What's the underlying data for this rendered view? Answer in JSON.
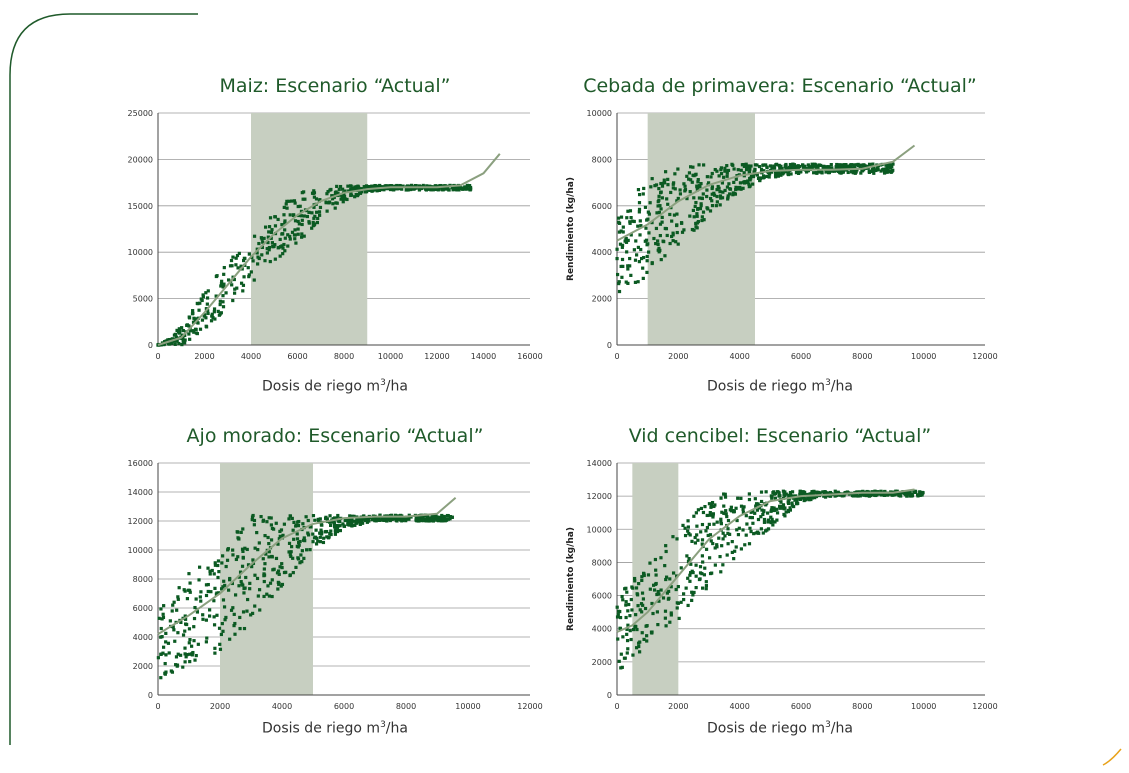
{
  "colors": {
    "frame": "#1f5a2a",
    "title": "#1f5a2a",
    "points": "#0b5a22",
    "curve": "#8ba07f",
    "band": "#c7cfc1",
    "grid": "#9a9a9a",
    "axis": "#444444",
    "corner": "#e8a21a"
  },
  "x_label": "Dosis de riego m",
  "x_label_sup": "3",
  "x_label_unit": "/ha",
  "chart_data": [
    {
      "type": "scatter",
      "title": "Maiz: Escenario “Actual”",
      "xlabel": "Dosis de riego m³/ha",
      "ylabel": "",
      "xlim": [
        0,
        16000
      ],
      "ylim": [
        0,
        25000
      ],
      "x_ticks": [
        "0",
        "2000",
        "4000",
        "6000",
        "8000",
        "10000",
        "12000",
        "14000",
        "16000"
      ],
      "y_ticks": [
        "0",
        "5000",
        "10000",
        "15000",
        "20000",
        "25000"
      ],
      "band": [
        4000,
        9000
      ],
      "curve": [
        [
          0,
          0
        ],
        [
          1000,
          800
        ],
        [
          2000,
          3500
        ],
        [
          3000,
          6500
        ],
        [
          4000,
          9500
        ],
        [
          5000,
          12000
        ],
        [
          6000,
          14000
        ],
        [
          7000,
          15500
        ],
        [
          8000,
          16400
        ],
        [
          9000,
          16800
        ],
        [
          10000,
          17000
        ],
        [
          11000,
          17000
        ],
        [
          12000,
          17000
        ],
        [
          13000,
          17200
        ],
        [
          14000,
          18500
        ],
        [
          14700,
          20600
        ]
      ],
      "cloud": {
        "x_min": 0,
        "x_max": 13500,
        "lower": [
          [
            0,
            0
          ],
          [
            1000,
            0
          ],
          [
            2000,
            1500
          ],
          [
            3000,
            4000
          ],
          [
            4000,
            6500
          ],
          [
            5000,
            9000
          ],
          [
            6000,
            11000
          ],
          [
            7000,
            13500
          ],
          [
            8000,
            15500
          ],
          [
            9000,
            16500
          ],
          [
            10000,
            16700
          ],
          [
            13500,
            16700
          ]
        ],
        "upper": [
          [
            0,
            0
          ],
          [
            500,
            700
          ],
          [
            1500,
            4000
          ],
          [
            2500,
            7500
          ],
          [
            3500,
            10500
          ],
          [
            4500,
            13000
          ],
          [
            5500,
            15500
          ],
          [
            6500,
            16900
          ],
          [
            8000,
            17200
          ],
          [
            13500,
            17200
          ]
        ]
      }
    },
    {
      "type": "scatter",
      "title": "Cebada de primavera: Escenario “Actual”",
      "xlabel": "Dosis de riego m³/ha",
      "ylabel": "Rendimiento (kg/ha)",
      "xlim": [
        0,
        12000
      ],
      "ylim": [
        0,
        10000
      ],
      "x_ticks": [
        "0",
        "2000",
        "4000",
        "6000",
        "8000",
        "10000",
        "12000"
      ],
      "y_ticks": [
        "0",
        "2000",
        "4000",
        "6000",
        "8000",
        "10000"
      ],
      "band": [
        1000,
        4500
      ],
      "curve": [
        [
          0,
          4500
        ],
        [
          1000,
          5200
        ],
        [
          2000,
          6200
        ],
        [
          3000,
          6900
        ],
        [
          4000,
          7300
        ],
        [
          5000,
          7500
        ],
        [
          6000,
          7550
        ],
        [
          7000,
          7550
        ],
        [
          8000,
          7600
        ],
        [
          9000,
          7900
        ],
        [
          9700,
          8600
        ]
      ],
      "cloud": {
        "x_min": 0,
        "x_max": 9000,
        "lower": [
          [
            0,
            2000
          ],
          [
            1000,
            3000
          ],
          [
            2000,
            4300
          ],
          [
            3000,
            5500
          ],
          [
            4000,
            6600
          ],
          [
            5000,
            7200
          ],
          [
            6000,
            7400
          ],
          [
            9000,
            7400
          ]
        ],
        "upper": [
          [
            0,
            5500
          ],
          [
            500,
            6400
          ],
          [
            1000,
            7200
          ],
          [
            1700,
            7700
          ],
          [
            3000,
            7800
          ],
          [
            9000,
            7800
          ]
        ]
      }
    },
    {
      "type": "scatter",
      "title": "Ajo morado: Escenario “Actual”",
      "xlabel": "Dosis de riego m³/ha",
      "ylabel": "",
      "xlim": [
        0,
        12000
      ],
      "ylim": [
        0,
        16000
      ],
      "x_ticks": [
        "0",
        "2000",
        "4000",
        "6000",
        "8000",
        "10000",
        "12000"
      ],
      "y_ticks": [
        "0",
        "2000",
        "4000",
        "6000",
        "8000",
        "10000",
        "12000",
        "14000",
        "16000"
      ],
      "band": [
        2000,
        5000
      ],
      "curve": [
        [
          0,
          4200
        ],
        [
          1000,
          5500
        ],
        [
          2000,
          7000
        ],
        [
          3000,
          9000
        ],
        [
          4000,
          10800
        ],
        [
          5000,
          11800
        ],
        [
          6000,
          12200
        ],
        [
          7000,
          12300
        ],
        [
          8000,
          12300
        ],
        [
          9000,
          12500
        ],
        [
          9600,
          13600
        ]
      ],
      "cloud": {
        "x_min": 0,
        "x_max": 9500,
        "lower": [
          [
            0,
            1000
          ],
          [
            1000,
            2000
          ],
          [
            2000,
            3000
          ],
          [
            3000,
            5000
          ],
          [
            4000,
            7500
          ],
          [
            5000,
            10000
          ],
          [
            6000,
            11500
          ],
          [
            7000,
            12000
          ],
          [
            9500,
            12000
          ]
        ],
        "upper": [
          [
            0,
            6000
          ],
          [
            500,
            7000
          ],
          [
            1000,
            8500
          ],
          [
            1500,
            9000
          ],
          [
            2000,
            9500
          ],
          [
            2500,
            11500
          ],
          [
            3000,
            12400
          ],
          [
            9500,
            12400
          ]
        ]
      }
    },
    {
      "type": "scatter",
      "title": "Vid cencibel: Escenario “Actual”",
      "xlabel": "Dosis de riego m³/ha",
      "ylabel": "Rendimiento (kg/ha)",
      "xlim": [
        0,
        12000
      ],
      "ylim": [
        0,
        14000
      ],
      "x_ticks": [
        "0",
        "2000",
        "4000",
        "6000",
        "8000",
        "10000",
        "12000"
      ],
      "y_ticks": [
        "0",
        "2000",
        "4000",
        "6000",
        "8000",
        "10000",
        "12000",
        "14000"
      ],
      "band": [
        500,
        2000
      ],
      "curve": [
        [
          0,
          3800
        ],
        [
          500,
          4200
        ],
        [
          1000,
          5000
        ],
        [
          2000,
          7200
        ],
        [
          3000,
          9400
        ],
        [
          4000,
          10800
        ],
        [
          5000,
          11700
        ],
        [
          6000,
          12000
        ],
        [
          7000,
          12100
        ],
        [
          8000,
          12200
        ],
        [
          9000,
          12200
        ],
        [
          9700,
          12400
        ]
      ],
      "cloud": {
        "x_min": 0,
        "x_max": 10000,
        "lower": [
          [
            0,
            1300
          ],
          [
            1000,
            3000
          ],
          [
            2000,
            4500
          ],
          [
            3000,
            6500
          ],
          [
            4000,
            8500
          ],
          [
            5000,
            10000
          ],
          [
            6000,
            11700
          ],
          [
            7000,
            12000
          ],
          [
            10000,
            12000
          ]
        ],
        "upper": [
          [
            0,
            6000
          ],
          [
            1000,
            7800
          ],
          [
            2000,
            10000
          ],
          [
            3000,
            11800
          ],
          [
            3500,
            12300
          ],
          [
            10000,
            12300
          ]
        ]
      }
    }
  ]
}
